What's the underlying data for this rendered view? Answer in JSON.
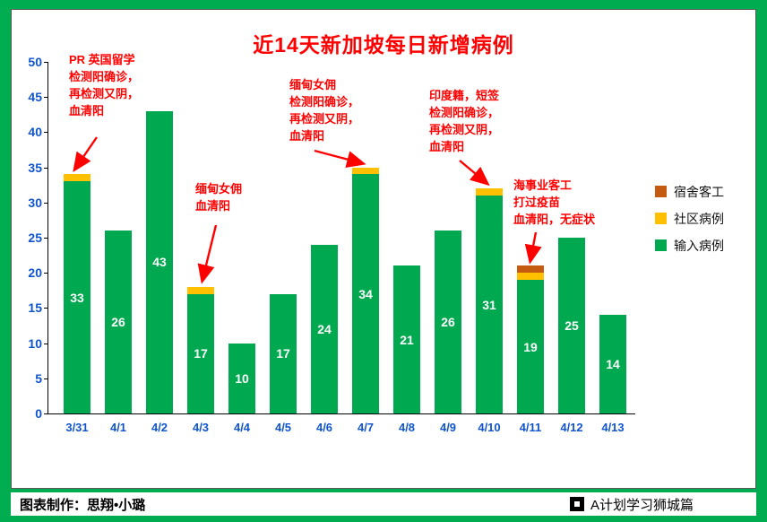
{
  "colors": {
    "background_green": "#00AC50",
    "imported_green": "#00A94F",
    "community_yellow": "#FFC000",
    "dormitory_orange": "#C55A11",
    "annotation_red": "#FF0000",
    "axis_label_blue": "#1155CC",
    "title_red": "#FF0000"
  },
  "chart_data": {
    "type": "bar",
    "stacked": true,
    "title": "近14天新加坡每日新增病例",
    "categories": [
      "3/31",
      "4/1",
      "4/2",
      "4/3",
      "4/4",
      "4/5",
      "4/6",
      "4/7",
      "4/8",
      "4/9",
      "4/10",
      "4/11",
      "4/12",
      "4/13"
    ],
    "series": [
      {
        "name": "输入病例",
        "color": "#00A94F",
        "values": [
          33,
          26,
          43,
          17,
          10,
          17,
          24,
          34,
          21,
          26,
          31,
          19,
          25,
          14
        ]
      },
      {
        "name": "社区病例",
        "color": "#FFC000",
        "values": [
          1,
          0,
          0,
          1,
          0,
          0,
          0,
          1,
          0,
          0,
          1,
          1,
          0,
          0
        ]
      },
      {
        "name": "宿舍客工",
        "color": "#C55A11",
        "values": [
          0,
          0,
          0,
          0,
          0,
          0,
          0,
          0,
          0,
          0,
          0,
          1,
          0,
          0
        ]
      }
    ],
    "bar_labels": [
      33,
      26,
      43,
      17,
      10,
      17,
      24,
      34,
      21,
      26,
      31,
      19,
      25,
      14
    ],
    "ylim": [
      0,
      50
    ],
    "ytick_step": 5,
    "grid": false,
    "legend_position": "right",
    "legend": [
      "宿舍客工",
      "社区病例",
      "输入病例"
    ],
    "annotations": [
      {
        "text": "PR 英国留学\n检测阳确诊，\n再检测又阴，\n血清阳",
        "target": "3/31"
      },
      {
        "text": "缅甸女佣\n血清阳",
        "target": "4/3"
      },
      {
        "text": "缅甸女佣\n检测阳确诊，\n再检测又阴，\n血清阳",
        "target": "4/7"
      },
      {
        "text": "印度籍，短签\n检测阳确诊，\n再检测又阴，\n血清阳",
        "target": "4/10"
      },
      {
        "text": "海事业客工\n打过疫苗\n血清阳，无症状",
        "target": "4/11"
      }
    ]
  },
  "footer": {
    "credit": "图表制作：思翔•小璐",
    "brand": "A计划学习狮城篇",
    "logo_icon": "qr-code-icon"
  }
}
